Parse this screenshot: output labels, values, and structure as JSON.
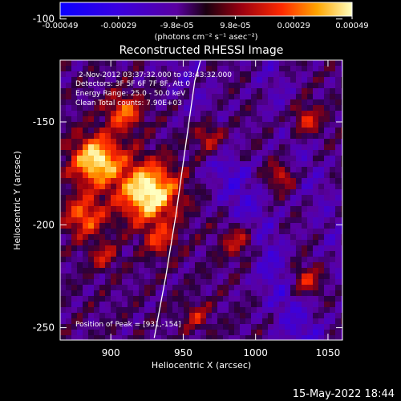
{
  "colorbar": {
    "tick_labels": [
      "-0.00049",
      "-0.00029",
      "-9.8e-05",
      "9.8e-05",
      "0.00029",
      "0.00049"
    ],
    "unit_label": "(photons cm⁻² s⁻¹ asec⁻²)",
    "range": [
      -0.00049,
      0.00049
    ]
  },
  "chart_data": {
    "type": "heatmap",
    "title": "Reconstructed RHESSI Image",
    "xlabel": "Heliocentric X (arcsec)",
    "ylabel": "Heliocentric Y (arcsec)",
    "xlim": [
      865,
      1060
    ],
    "ylim": [
      -256,
      -120
    ],
    "x_ticks": [
      900,
      950,
      1000,
      1050
    ],
    "y_ticks": [
      -100,
      -150,
      -200,
      -250
    ],
    "annotation_lines": [
      "2-Nov-2012 03:37:32.000 to 03:43:32.000",
      "Detectors: 3F 5F 6F 7F 8F, Att 0",
      "Energy Range: 25.0 - 50.0 keV",
      "Clean    Total counts: 7.90E+03"
    ],
    "peak_label": "Position of Peak = [931,-154]",
    "peak": [
      931,
      -154
    ],
    "limb_curve": [
      [
        930,
        -255
      ],
      [
        938,
        -225
      ],
      [
        945,
        -195
      ],
      [
        952,
        -160
      ],
      [
        958,
        -130
      ],
      [
        962,
        -120
      ]
    ]
  },
  "timestamp": "15-May-2022 18:44"
}
